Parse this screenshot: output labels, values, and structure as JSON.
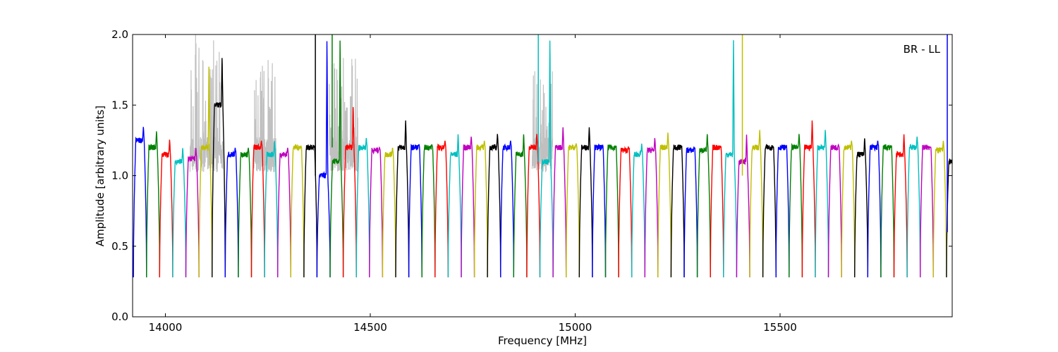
{
  "chart_data": {
    "type": "line",
    "title": "",
    "xlabel": "Frequency [MHz]",
    "ylabel": "Amplitude [arbitrary units]",
    "annotation": "BR - LL",
    "xlim": [
      13920,
      15920
    ],
    "ylim": [
      0,
      2.0
    ],
    "xticks": [
      14000,
      14500,
      15000,
      15500
    ],
    "yticks": [
      0.0,
      0.5,
      1.0,
      1.5,
      2.0
    ],
    "xtick_labels": [
      "14000",
      "14500",
      "15000",
      "15500"
    ],
    "ytick_labels": [
      "0.0",
      "0.5",
      "1.0",
      "1.5",
      "2.0"
    ],
    "grid": false,
    "band_width_mhz": 32,
    "band_starts_mhz": [
      13922,
      13954,
      13986,
      14018,
      14050,
      14082,
      14114,
      14146,
      14178,
      14210,
      14242,
      14274,
      14306,
      14338,
      14370,
      14402,
      14434,
      14466,
      14498,
      14530,
      14562,
      14594,
      14626,
      14658,
      14690,
      14722,
      14754,
      14786,
      14818,
      14850,
      14882,
      14914,
      14946,
      14978,
      15010,
      15042,
      15074,
      15106,
      15138,
      15170,
      15202,
      15234,
      15266,
      15298,
      15330,
      15362,
      15394,
      15426,
      15458,
      15490,
      15522,
      15554,
      15586,
      15618,
      15650,
      15682,
      15714,
      15746,
      15778,
      15810,
      15842,
      15874,
      15906
    ],
    "band_levels": [
      1.25,
      1.2,
      1.15,
      1.1,
      1.12,
      1.2,
      1.5,
      1.15,
      1.15,
      1.2,
      1.15,
      1.15,
      1.2,
      1.2,
      1.0,
      1.1,
      1.2,
      1.2,
      1.18,
      1.15,
      1.2,
      1.2,
      1.2,
      1.2,
      1.15,
      1.2,
      1.2,
      1.2,
      1.2,
      1.15,
      1.2,
      1.1,
      1.2,
      1.2,
      1.2,
      1.2,
      1.2,
      1.18,
      1.15,
      1.18,
      1.2,
      1.2,
      1.18,
      1.18,
      1.2,
      1.15,
      1.1,
      1.2,
      1.2,
      1.2,
      1.2,
      1.2,
      1.2,
      1.2,
      1.2,
      1.15,
      1.2,
      1.2,
      1.15,
      1.2,
      1.2,
      1.18,
      1.1
    ],
    "band_peaks": [
      1.35,
      1.32,
      1.26,
      1.2,
      1.2,
      1.8,
      1.85,
      1.2,
      1.2,
      1.25,
      1.25,
      1.2,
      1.2,
      1.2,
      2.0,
      2.0,
      1.5,
      1.27,
      1.2,
      1.2,
      1.4,
      1.22,
      1.22,
      1.25,
      1.3,
      1.28,
      1.25,
      1.3,
      1.25,
      1.3,
      1.3,
      2.0,
      1.35,
      1.23,
      1.35,
      1.2,
      1.2,
      1.2,
      1.23,
      1.27,
      1.31,
      1.2,
      1.2,
      1.3,
      1.2,
      2.0,
      1.3,
      1.33,
      1.2,
      1.2,
      1.3,
      1.4,
      1.33,
      1.22,
      1.25,
      1.27,
      1.25,
      1.2,
      1.3,
      1.28,
      1.2,
      1.25,
      2.0
    ],
    "band_edge_min": 0.28,
    "palette": [
      "#0000ff",
      "#008000",
      "#ff0000",
      "#00bfbf",
      "#bf00bf",
      "#bfbf00",
      "#000000"
    ],
    "rfi_color": "#c0c0c0",
    "spikes": [
      {
        "x": 14366,
        "ymin": 1.0,
        "ymax": 2.0,
        "color": "#000000"
      },
      {
        "x": 14407,
        "ymin": 1.2,
        "ymax": 2.0,
        "color": "#008000"
      },
      {
        "x": 14910,
        "ymin": 1.1,
        "ymax": 2.0,
        "color": "#00bfbf"
      },
      {
        "x": 15408,
        "ymin": 1.0,
        "ymax": 2.0,
        "color": "#bfbf00"
      },
      {
        "x": 15908,
        "ymin": 0.6,
        "ymax": 2.0,
        "color": "#0000ff"
      }
    ],
    "rfi_regions": [
      {
        "x0": 14060,
        "x1": 14140,
        "ymax": 2.0
      },
      {
        "x0": 14215,
        "x1": 14270,
        "ymax": 1.85
      },
      {
        "x0": 14400,
        "x1": 14470,
        "ymax": 1.85
      },
      {
        "x0": 14895,
        "x1": 14945,
        "ymax": 1.75
      }
    ]
  }
}
